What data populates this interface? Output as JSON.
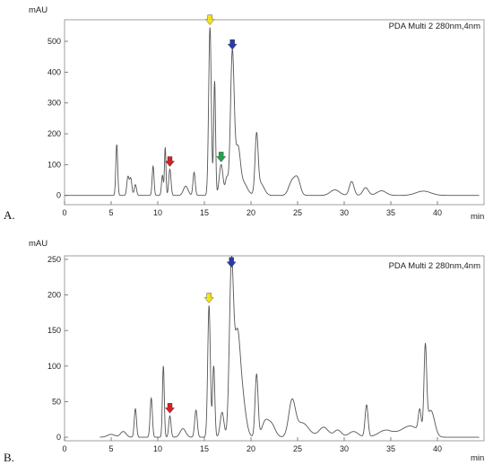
{
  "chart_data": [
    {
      "type": "line",
      "panel_label": "A.",
      "ylabel": "mAU",
      "xlabel": "min",
      "legend_text": "PDA Multi 2 280nm,4nm",
      "xlim": [
        0,
        45
      ],
      "ylim": [
        -30,
        570
      ],
      "x_ticks": [
        0,
        5,
        10,
        15,
        20,
        25,
        30,
        35,
        40
      ],
      "y_ticks": [
        0,
        100,
        200,
        300,
        400,
        500
      ],
      "trace_color": "#555555",
      "peaks": [
        {
          "x": 5.6,
          "y": 165,
          "w": 0.1
        },
        {
          "x": 6.8,
          "y": 60,
          "w": 0.12
        },
        {
          "x": 7.1,
          "y": 55,
          "w": 0.12
        },
        {
          "x": 7.6,
          "y": 35,
          "w": 0.12
        },
        {
          "x": 9.5,
          "y": 95,
          "w": 0.1
        },
        {
          "x": 10.5,
          "y": 65,
          "w": 0.1
        },
        {
          "x": 10.8,
          "y": 155,
          "w": 0.08
        },
        {
          "x": 11.3,
          "y": 85,
          "w": 0.12
        },
        {
          "x": 13.0,
          "y": 30,
          "w": 0.25
        },
        {
          "x": 13.9,
          "y": 75,
          "w": 0.12
        },
        {
          "x": 15.6,
          "y": 545,
          "w": 0.14
        },
        {
          "x": 16.1,
          "y": 370,
          "w": 0.1
        },
        {
          "x": 16.8,
          "y": 100,
          "w": 0.2
        },
        {
          "x": 17.4,
          "y": 55,
          "w": 0.15
        },
        {
          "x": 18.0,
          "y": 465,
          "w": 0.2
        },
        {
          "x": 18.6,
          "y": 145,
          "w": 0.25
        },
        {
          "x": 19.2,
          "y": 40,
          "w": 0.4
        },
        {
          "x": 20.6,
          "y": 180,
          "w": 0.16
        },
        {
          "x": 21.0,
          "y": 40,
          "w": 0.4
        },
        {
          "x": 24.4,
          "y": 45,
          "w": 0.35
        },
        {
          "x": 25.0,
          "y": 50,
          "w": 0.3
        },
        {
          "x": 29.0,
          "y": 18,
          "w": 0.5
        },
        {
          "x": 30.8,
          "y": 45,
          "w": 0.25
        },
        {
          "x": 32.3,
          "y": 25,
          "w": 0.3
        },
        {
          "x": 34.0,
          "y": 15,
          "w": 0.5
        },
        {
          "x": 38.5,
          "y": 14,
          "w": 0.8
        }
      ],
      "markers": [
        {
          "x": 11.3,
          "y": 85,
          "color": "#d81f26"
        },
        {
          "x": 15.6,
          "y": 545,
          "color": "#f2e21b"
        },
        {
          "x": 16.8,
          "y": 100,
          "color": "#21a34a"
        },
        {
          "x": 18.0,
          "y": 465,
          "color": "#2b3aa8"
        }
      ]
    },
    {
      "type": "line",
      "panel_label": "B.",
      "ylabel": "mAU",
      "xlabel": "min",
      "legend_text": "PDA Multi 2 280nm,4nm",
      "xlim": [
        0,
        45
      ],
      "ylim": [
        -5,
        255
      ],
      "x_ticks": [
        0,
        5,
        10,
        15,
        20,
        25,
        30,
        35,
        40
      ],
      "y_ticks": [
        0,
        50,
        100,
        150,
        200,
        250
      ],
      "trace_color": "#555555",
      "peaks": [
        {
          "x": 5.0,
          "y": 4,
          "w": 0.4
        },
        {
          "x": 6.3,
          "y": 8,
          "w": 0.3
        },
        {
          "x": 7.6,
          "y": 40,
          "w": 0.12
        },
        {
          "x": 9.3,
          "y": 55,
          "w": 0.12
        },
        {
          "x": 10.6,
          "y": 100,
          "w": 0.1
        },
        {
          "x": 11.3,
          "y": 30,
          "w": 0.12
        },
        {
          "x": 12.7,
          "y": 12,
          "w": 0.3
        },
        {
          "x": 14.1,
          "y": 38,
          "w": 0.14
        },
        {
          "x": 15.5,
          "y": 185,
          "w": 0.14
        },
        {
          "x": 16.0,
          "y": 100,
          "w": 0.12
        },
        {
          "x": 16.9,
          "y": 35,
          "w": 0.2
        },
        {
          "x": 17.9,
          "y": 235,
          "w": 0.22
        },
        {
          "x": 18.5,
          "y": 120,
          "w": 0.3
        },
        {
          "x": 19.0,
          "y": 60,
          "w": 0.4
        },
        {
          "x": 20.6,
          "y": 88,
          "w": 0.16
        },
        {
          "x": 21.5,
          "y": 20,
          "w": 0.35
        },
        {
          "x": 22.2,
          "y": 18,
          "w": 0.4
        },
        {
          "x": 24.4,
          "y": 48,
          "w": 0.35
        },
        {
          "x": 25.5,
          "y": 20,
          "w": 0.7
        },
        {
          "x": 27.8,
          "y": 14,
          "w": 0.5
        },
        {
          "x": 29.3,
          "y": 10,
          "w": 0.4
        },
        {
          "x": 31.0,
          "y": 8,
          "w": 0.5
        },
        {
          "x": 32.4,
          "y": 45,
          "w": 0.16
        },
        {
          "x": 34.5,
          "y": 10,
          "w": 0.8
        },
        {
          "x": 37.0,
          "y": 10,
          "w": 0.8
        },
        {
          "x": 38.1,
          "y": 30,
          "w": 0.15
        },
        {
          "x": 38.7,
          "y": 115,
          "w": 0.14
        },
        {
          "x": 39.3,
          "y": 35,
          "w": 0.4
        }
      ],
      "baseline_hump": {
        "from": 35.0,
        "to": 40.0,
        "y": 6
      },
      "markers": [
        {
          "x": 11.3,
          "y": 30,
          "color": "#d81f26"
        },
        {
          "x": 15.5,
          "y": 185,
          "color": "#f2e21b"
        },
        {
          "x": 17.9,
          "y": 235,
          "color": "#2b3aa8"
        }
      ]
    }
  ]
}
